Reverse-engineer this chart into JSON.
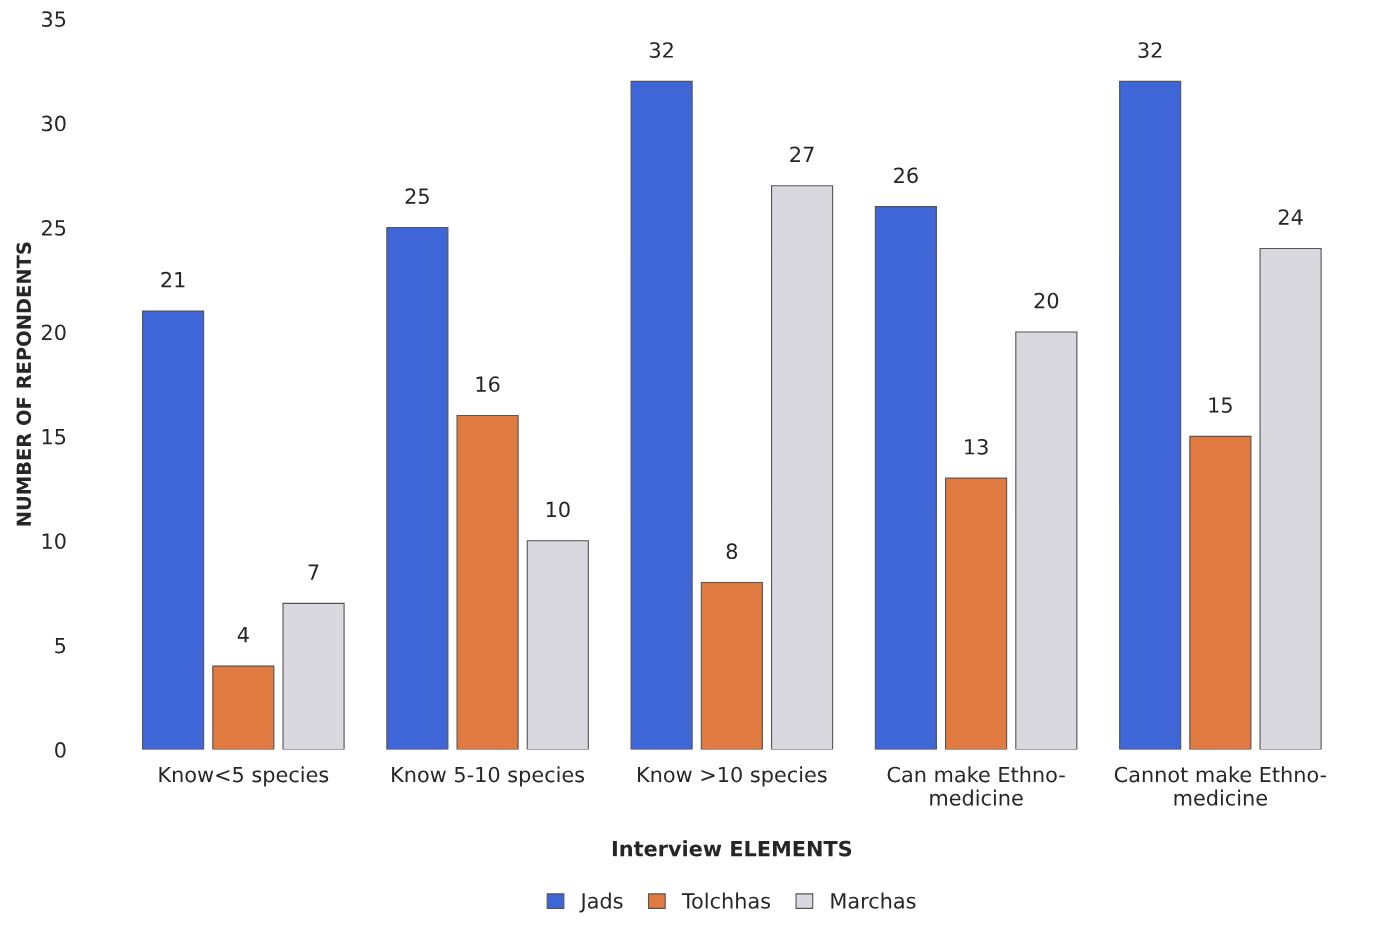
{
  "chart_data": {
    "type": "bar",
    "xlabel": "Interview ELEMENTS",
    "ylabel": "NUMBER OF REPONDENTS",
    "categories": [
      "Know<5 species",
      "Know 5-10 species",
      "Know >10 species",
      "Can make Ethno-\nmedicine",
      "Cannot make Ethno-\nmedicine"
    ],
    "series": [
      {
        "name": "Jads",
        "color": "#3f66d6",
        "values": [
          21,
          25,
          32,
          26,
          32
        ]
      },
      {
        "name": "Tolchhas",
        "color": "#e07a40",
        "values": [
          4,
          16,
          8,
          13,
          15
        ]
      },
      {
        "name": "Marchas",
        "color": "#d8d8de",
        "values": [
          7,
          10,
          27,
          20,
          24
        ]
      }
    ],
    "ylim": [
      0,
      35
    ],
    "yticks": [
      0,
      5,
      10,
      15,
      20,
      25,
      30,
      35
    ],
    "grid": false,
    "legend": "bottom",
    "data_labels": true
  }
}
